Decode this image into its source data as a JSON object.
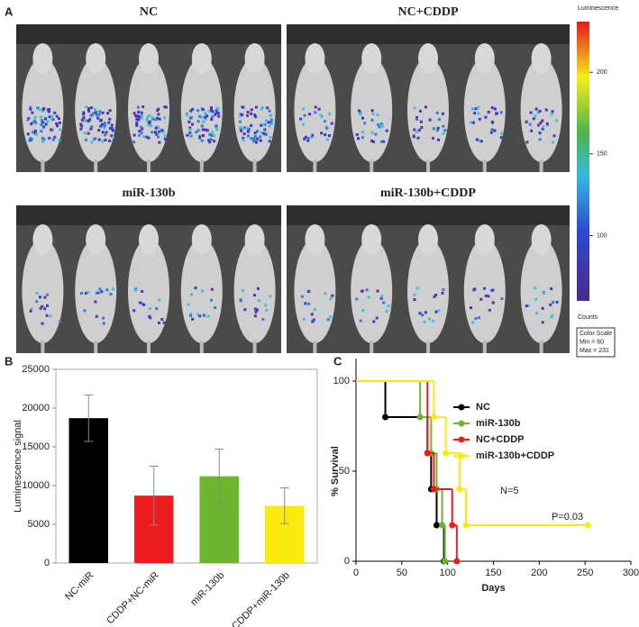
{
  "panel_a": {
    "label": "A",
    "groups": [
      "NC",
      "NC+CDDP",
      "miR-130b",
      "miR-130b+CDDP"
    ],
    "colorbar": {
      "title": "Luminescence",
      "ticks": [
        200,
        150,
        100
      ],
      "lim": [
        60,
        231
      ],
      "unit": "Counts",
      "box": [
        "Color Scale",
        "Min = 60",
        "Max = 231"
      ]
    }
  },
  "chart_data": [
    {
      "type": "bar",
      "panel_label": "B",
      "y_label": "Luminescence signal",
      "categories": [
        "NC-miR",
        "CDDP+NC-miR",
        "miR-130b",
        "CDDP+miR-130b"
      ],
      "values": [
        18700,
        8700,
        11200,
        7400
      ],
      "errors": [
        3000,
        3800,
        3500,
        2300
      ],
      "colors": [
        "#000000",
        "#ee1c1c",
        "#6cb52d",
        "#fbea0f"
      ],
      "ylim": [
        0,
        25000
      ],
      "yticks": [
        0,
        5000,
        10000,
        15000,
        20000,
        25000
      ]
    },
    {
      "type": "step",
      "panel_label": "C",
      "x_label": "Days",
      "y_label": "% Survival",
      "series": [
        {
          "name": "NC",
          "color": "#000000",
          "x": [
            0,
            32,
            78,
            82,
            88,
            96
          ],
          "values": [
            100,
            80,
            60,
            40,
            20,
            0
          ]
        },
        {
          "name": "miR-130b",
          "color": "#6cb52d",
          "x": [
            0,
            70,
            82,
            88,
            94,
            97
          ],
          "values": [
            100,
            80,
            60,
            40,
            20,
            0
          ]
        },
        {
          "name": "NC+CDDP",
          "color": "#ee1c1c",
          "x": [
            0,
            78,
            85,
            105,
            110
          ],
          "values": [
            100,
            60,
            40,
            20,
            0
          ]
        },
        {
          "name": "miR-130b+CDDP",
          "color": "#fbea0f",
          "x": [
            0,
            85,
            98,
            113,
            120,
            253
          ],
          "values": [
            100,
            80,
            60,
            40,
            20,
            20
          ]
        }
      ],
      "annotations": [
        "N=5",
        "P=0.03"
      ],
      "xlim": [
        0,
        300
      ],
      "xticks": [
        0,
        50,
        100,
        150,
        200,
        250,
        300
      ],
      "ylim": [
        0,
        100
      ],
      "yticks": [
        0,
        50,
        100
      ]
    }
  ]
}
